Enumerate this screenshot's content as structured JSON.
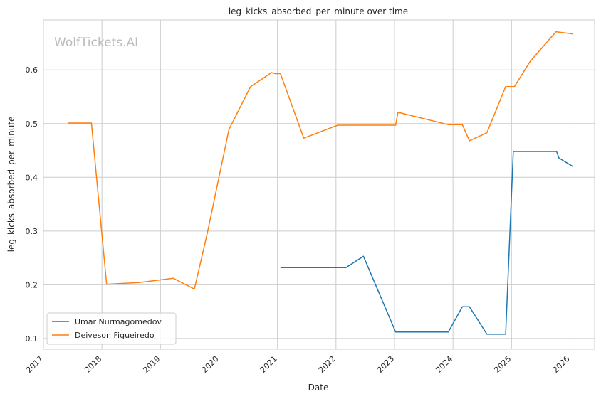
{
  "chart_data": {
    "type": "line",
    "title": "leg_kicks_absorbed_per_minute over time",
    "xlabel": "Date",
    "ylabel": "leg_kicks_absorbed_per_minute",
    "watermark": "WolfTickets.AI",
    "xlim": [
      2017.0,
      2026.42
    ],
    "ylim": [
      0.08,
      0.693
    ],
    "xticks": [
      2017,
      2018,
      2019,
      2020,
      2021,
      2022,
      2023,
      2024,
      2025,
      2026
    ],
    "xtick_labels": [
      "2017",
      "2018",
      "2019",
      "2020",
      "2021",
      "2022",
      "2023",
      "2024",
      "2025",
      "2026"
    ],
    "yticks": [
      0.1,
      0.2,
      0.3,
      0.4,
      0.5,
      0.6
    ],
    "ytick_labels": [
      "0.1",
      "0.2",
      "0.3",
      "0.4",
      "0.5",
      "0.6"
    ],
    "grid": true,
    "legend_position": "lower-left",
    "series": [
      {
        "name": "Umar Nurmagomedov",
        "color": "#1f77b4",
        "x": [
          2021.05,
          2022.17,
          2022.47,
          2023.02,
          2023.92,
          2024.16,
          2024.28,
          2024.58,
          2024.9,
          2025.03,
          2025.77,
          2025.81,
          2026.05
        ],
        "y": [
          0.232,
          0.232,
          0.253,
          0.112,
          0.112,
          0.159,
          0.159,
          0.108,
          0.108,
          0.448,
          0.448,
          0.436,
          0.42
        ]
      },
      {
        "name": "Deiveson Figueiredo",
        "color": "#ff7f0e",
        "x": [
          2017.42,
          2017.82,
          2018.08,
          2018.63,
          2019.22,
          2019.58,
          2019.8,
          2020.17,
          2020.54,
          2020.9,
          2020.96,
          2021.05,
          2021.45,
          2022.03,
          2023.02,
          2023.06,
          2023.92,
          2024.16,
          2024.28,
          2024.58,
          2024.9,
          2025.05,
          2025.32,
          2025.76,
          2026.05
        ],
        "y": [
          0.501,
          0.501,
          0.201,
          0.204,
          0.212,
          0.192,
          0.296,
          0.489,
          0.569,
          0.595,
          0.593,
          0.593,
          0.473,
          0.497,
          0.497,
          0.521,
          0.498,
          0.498,
          0.468,
          0.483,
          0.569,
          0.569,
          0.616,
          0.671,
          0.667
        ]
      }
    ]
  }
}
